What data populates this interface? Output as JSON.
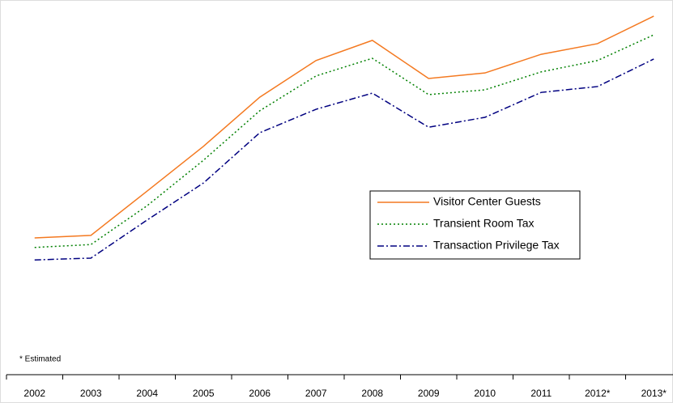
{
  "chart_data": {
    "type": "line",
    "categories": [
      "2002",
      "2003",
      "2004",
      "2005",
      "2006",
      "2007",
      "2008",
      "2009",
      "2010",
      "2011",
      "2012*",
      "2013*"
    ],
    "series": [
      {
        "name": "Visitor Center Guests",
        "color": "#f47920",
        "values": [
          37.3,
          38.0,
          50.1,
          62.3,
          75.7,
          85.7,
          91.2,
          80.8,
          82.3,
          87.4,
          90.3,
          97.8
        ]
      },
      {
        "name": "Transient Room Tax",
        "color": "#008000",
        "values": [
          34.7,
          35.5,
          46.1,
          58.5,
          72.0,
          81.5,
          86.3,
          76.4,
          77.7,
          82.6,
          85.7,
          92.7
        ]
      },
      {
        "name": "Transaction Privilege Tax",
        "color": "#000080",
        "values": [
          31.3,
          31.8,
          42.2,
          52.3,
          66.0,
          72.4,
          76.8,
          67.5,
          70.2,
          77.0,
          78.6,
          86.1
        ]
      }
    ],
    "ylim": [
      0,
      100
    ],
    "annotation": "* Estimated"
  }
}
